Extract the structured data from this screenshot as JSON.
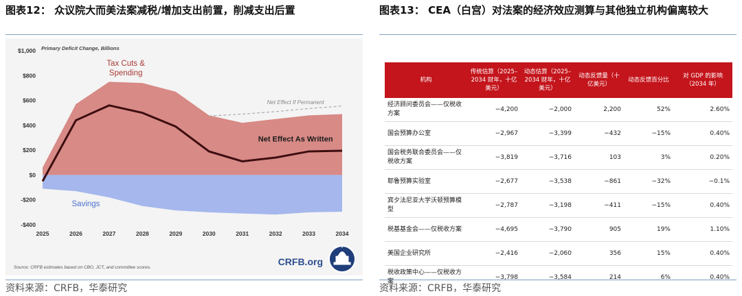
{
  "left": {
    "title": "图表12：  众议院大而美法案减税/增加支出前置，削减支出后置",
    "source": "资料来源：CRFB，华泰研究"
  },
  "right": {
    "title": "图表13：  CEA（白宫）对法案的经济效应测算与其他独立机构偏离较大",
    "source": "资料来源：CRFB，华泰研究",
    "table": {
      "headers": [
        "机构",
        "传统估算（2025–2034 财年，十亿美元）",
        "动态估算（2025–2034 财年，十亿美元）",
        "动态反馈量（十亿美元）",
        "动态反馈百分比",
        "对 GDP 的影响（2034 年）"
      ],
      "rows": [
        [
          "经济顾问委员会——仅税收方案",
          "−4,200",
          "−2,000",
          "2,200",
          "52%",
          "2.60%"
        ],
        [
          "国会预算办公室",
          "−2,967",
          "−3,399",
          "−432",
          "−15%",
          "0.40%"
        ],
        [
          "国会税务联合委员会——仅税收方案",
          "−3,819",
          "−3,716",
          "103",
          "3%",
          "0.20%"
        ],
        [
          "耶鲁预算实验室",
          "−2,677",
          "−3,538",
          "−861",
          "−32%",
          "−0.1%"
        ],
        [
          "宾夕法尼亚大学沃顿预算模型",
          "−2,787",
          "−3,198",
          "−411",
          "−15%",
          "0.40%"
        ],
        [
          "税基基金会——仅税收方案",
          "−4,695",
          "−3,790",
          "905",
          "19%",
          "1.10%"
        ],
        [
          "美国企业研究所",
          "−2,416",
          "−2,060",
          "356",
          "15%",
          "0.40%"
        ],
        [
          "税收政策中心——仅税收方案",
          "−3,798",
          "−3,584",
          "214",
          "6%",
          "0.40%"
        ]
      ]
    }
  },
  "chart_data": {
    "type": "area",
    "title": "Primary Deficit Change, Billions",
    "x": [
      "2025",
      "2026",
      "2027",
      "2028",
      "2029",
      "2030",
      "2031",
      "2032",
      "2033",
      "2034"
    ],
    "ylim": [
      -400,
      1000
    ],
    "yticks": [
      -400,
      -200,
      0,
      200,
      400,
      600,
      800,
      1000
    ],
    "ytick_labels": [
      "-$400",
      "-$200",
      "$0",
      "$200",
      "$400",
      "$600",
      "$800",
      "$1,000"
    ],
    "series": [
      {
        "name": "Tax Cuts & Spending",
        "values": [
          60,
          570,
          750,
          740,
          670,
          480,
          420,
          450,
          480,
          490
        ],
        "color": "#d88a86"
      },
      {
        "name": "Savings",
        "values": [
          -110,
          -130,
          -180,
          -250,
          -285,
          -300,
          -310,
          -318,
          -300,
          -295
        ],
        "color": "#a5b7ec"
      },
      {
        "name": "Net Effect As Written",
        "values": [
          -50,
          440,
          560,
          500,
          390,
          190,
          110,
          140,
          190,
          195
        ],
        "color": "#3d0e10"
      },
      {
        "name": "Net Effect If Permanent",
        "values": [
          null,
          null,
          null,
          null,
          null,
          475,
          490,
          510,
          535,
          555
        ],
        "color": "#aaaaaa"
      }
    ],
    "source": "Source: CRFB estimates based on CBO, JCT, and committee scores.",
    "logo": "CRFB.org",
    "grid": false,
    "legend": "inline labels"
  }
}
